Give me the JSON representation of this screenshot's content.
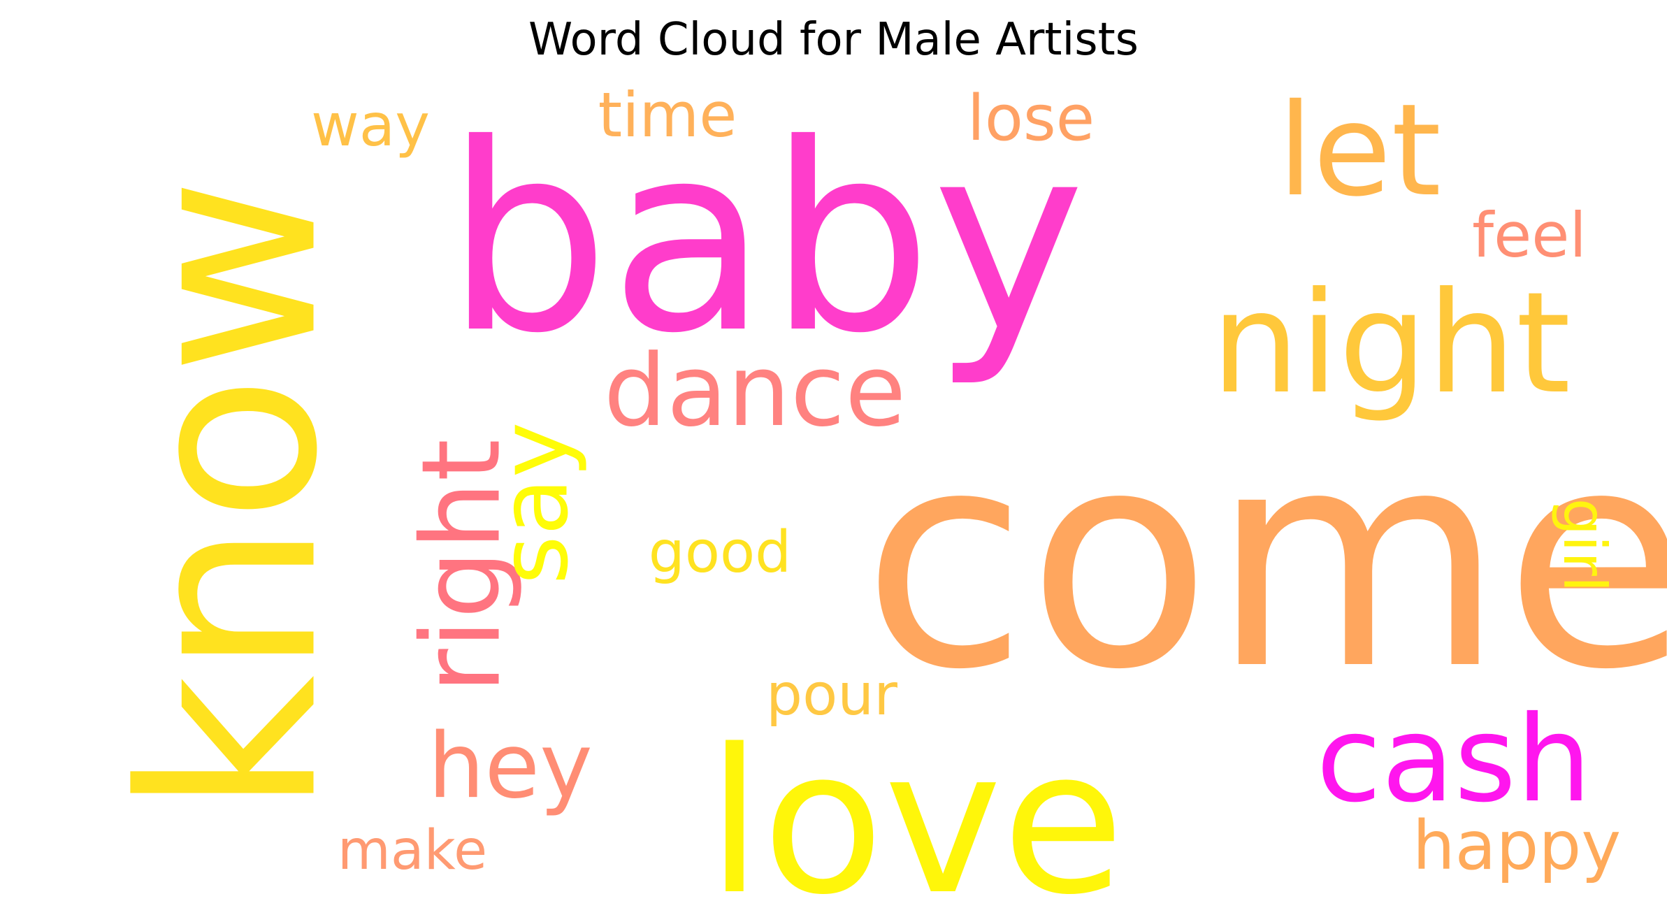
{
  "title": "Word Cloud for Male Artists",
  "chart_data": {
    "type": "wordcloud",
    "title": "Word Cloud for Male Artists",
    "words": [
      {
        "text": "come",
        "weight": 1.0,
        "orientation": "horizontal",
        "color": "#FFA65E"
      },
      {
        "text": "baby",
        "weight": 0.86,
        "orientation": "horizontal",
        "color": "#FF3DCB"
      },
      {
        "text": "know",
        "weight": 0.8,
        "orientation": "vertical",
        "color": "#FFE21F"
      },
      {
        "text": "love",
        "weight": 0.66,
        "orientation": "horizontal",
        "color": "#FFF60A"
      },
      {
        "text": "night",
        "weight": 0.48,
        "orientation": "horizontal",
        "color": "#FFC83B"
      },
      {
        "text": "let",
        "weight": 0.42,
        "orientation": "horizontal",
        "color": "#FFB64D"
      },
      {
        "text": "cash",
        "weight": 0.4,
        "orientation": "horizontal",
        "color": "#FF16EE"
      },
      {
        "text": "right",
        "weight": 0.36,
        "orientation": "vertical",
        "color": "#FF7480"
      },
      {
        "text": "dance",
        "weight": 0.33,
        "orientation": "horizontal",
        "color": "#FF8280"
      },
      {
        "text": "say",
        "weight": 0.31,
        "orientation": "vertical",
        "color": "#FFFC08"
      },
      {
        "text": "hey",
        "weight": 0.3,
        "orientation": "horizontal",
        "color": "#FF8D74"
      },
      {
        "text": "happy",
        "weight": 0.22,
        "orientation": "horizontal",
        "color": "#FFAA5A"
      },
      {
        "text": "lose",
        "weight": 0.21,
        "orientation": "horizontal",
        "color": "#FFA164"
      },
      {
        "text": "time",
        "weight": 0.2,
        "orientation": "horizontal",
        "color": "#FFB15A"
      },
      {
        "text": "feel",
        "weight": 0.2,
        "orientation": "horizontal",
        "color": "#FF8F74"
      },
      {
        "text": "way",
        "weight": 0.19,
        "orientation": "horizontal",
        "color": "#FFC147"
      },
      {
        "text": "girl",
        "weight": 0.19,
        "orientation": "vertical",
        "color": "#FFF40F"
      },
      {
        "text": "good",
        "weight": 0.19,
        "orientation": "horizontal",
        "color": "#FFE221"
      },
      {
        "text": "pour",
        "weight": 0.19,
        "orientation": "horizontal",
        "color": "#FFC843"
      },
      {
        "text": "make",
        "weight": 0.17,
        "orientation": "horizontal",
        "color": "#FF9A72"
      }
    ]
  }
}
